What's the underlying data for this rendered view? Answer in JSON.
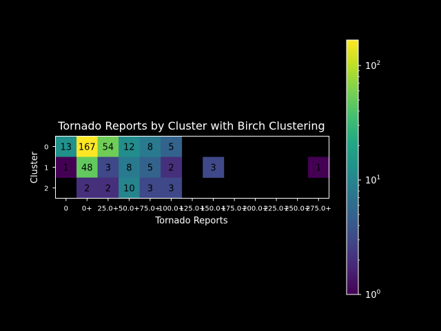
{
  "chart_data": {
    "type": "heatmap",
    "title": "Tornado Reports by Cluster with Birch Clustering",
    "xlabel": "Tornado Reports",
    "ylabel": "Cluster",
    "x_categories": [
      "0",
      "0+",
      "25.0+",
      "50.0+",
      "75.0+",
      "100.0+",
      "125.0+",
      "150.0+",
      "175.0+",
      "200.0+",
      "225.0+",
      "250.0+",
      "275.0+"
    ],
    "y_categories": [
      "0",
      "1",
      "2"
    ],
    "values": [
      [
        13,
        167,
        54,
        12,
        8,
        5,
        null,
        null,
        null,
        null,
        null,
        null,
        null
      ],
      [
        1,
        48,
        3,
        8,
        5,
        2,
        null,
        3,
        null,
        null,
        null,
        null,
        1
      ],
      [
        null,
        2,
        2,
        10,
        3,
        3,
        null,
        null,
        null,
        null,
        null,
        null,
        null
      ]
    ],
    "colorscale": "viridis",
    "color_scale_type": "log",
    "color_range": [
      1,
      167
    ],
    "colorbar_ticks": [
      {
        "base": "10",
        "exp": "0",
        "value": 1
      },
      {
        "base": "10",
        "exp": "1",
        "value": 10
      },
      {
        "base": "10",
        "exp": "2",
        "value": 100
      }
    ],
    "missing_color": "#000000",
    "grid": false
  }
}
